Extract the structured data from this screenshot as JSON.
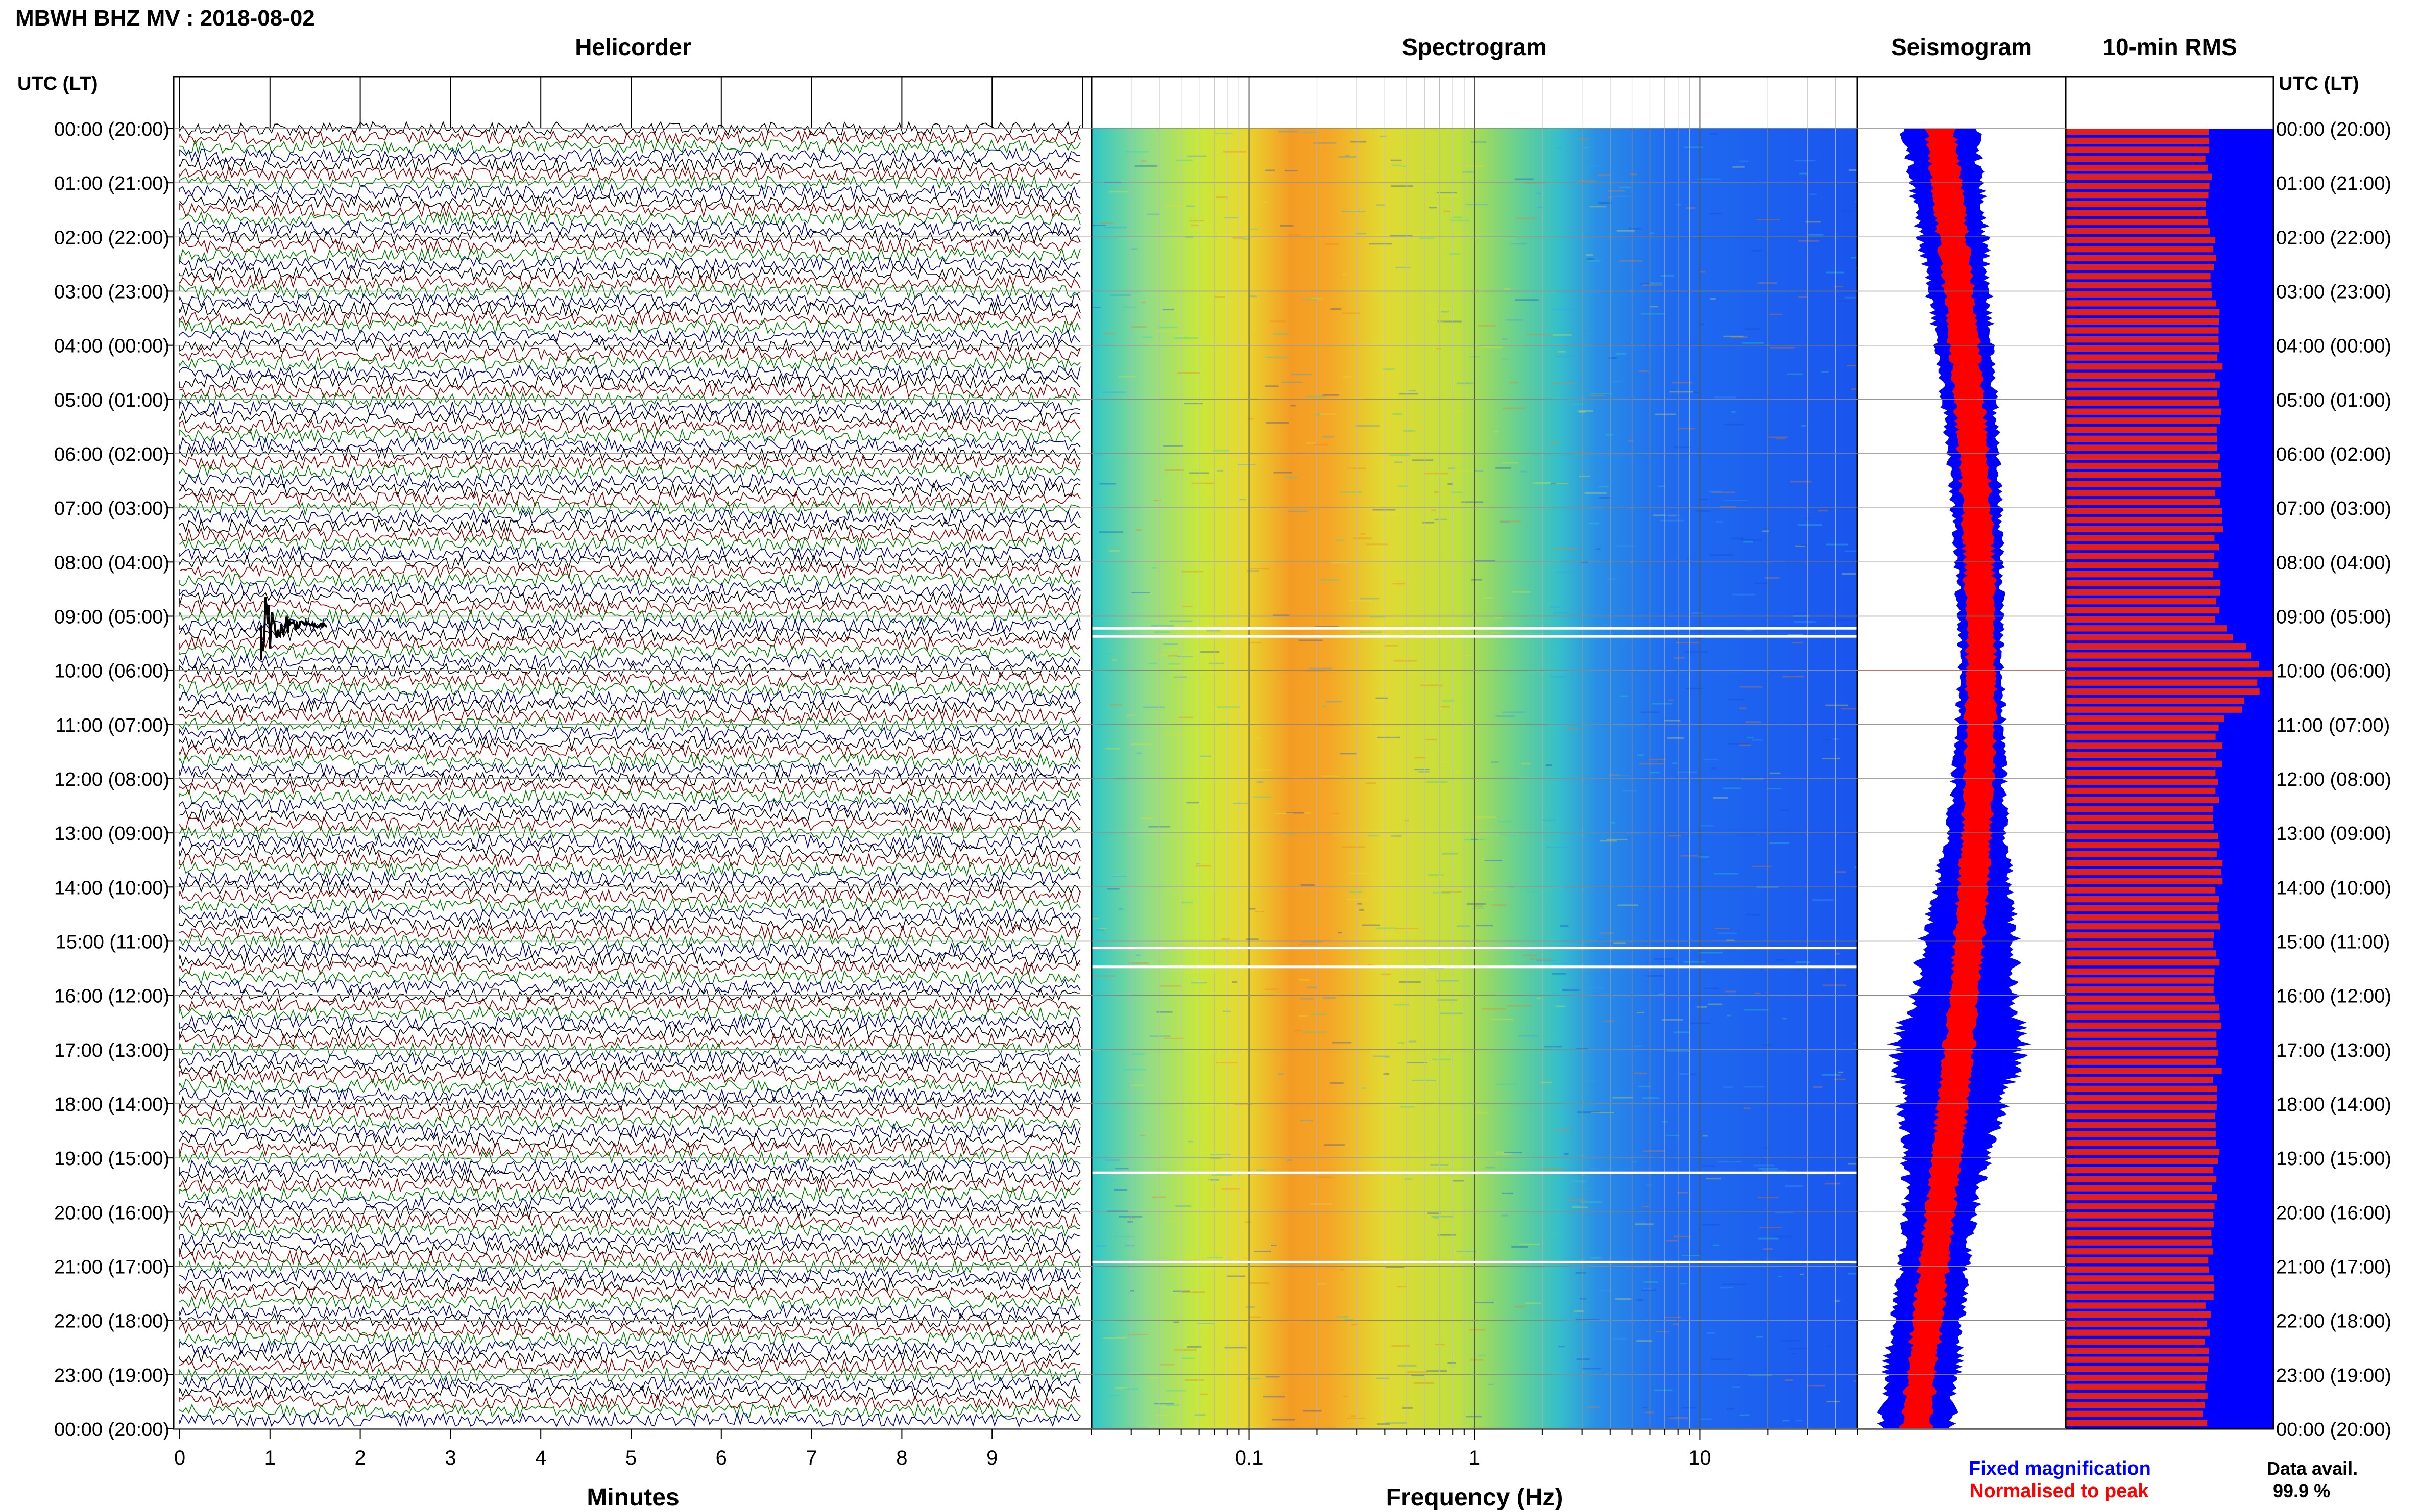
{
  "title": "MBWH BHZ MV : 2018-08-02",
  "panels": {
    "helicorder": "Helicorder",
    "spectrogram": "Spectrogram",
    "seismogram": "Seismogram",
    "rms": "10-min RMS"
  },
  "axis_headers": {
    "left": "UTC (LT)",
    "right": "UTC (LT)"
  },
  "time_labels": [
    "00:00 (20:00)",
    "01:00 (21:00)",
    "02:00 (22:00)",
    "03:00 (23:00)",
    "04:00 (00:00)",
    "05:00 (01:00)",
    "06:00 (02:00)",
    "07:00 (03:00)",
    "08:00 (04:00)",
    "09:00 (05:00)",
    "10:00 (06:00)",
    "11:00 (07:00)",
    "12:00 (08:00)",
    "13:00 (09:00)",
    "14:00 (10:00)",
    "15:00 (11:00)",
    "16:00 (12:00)",
    "17:00 (13:00)",
    "18:00 (14:00)",
    "19:00 (15:00)",
    "20:00 (16:00)",
    "21:00 (17:00)",
    "22:00 (18:00)",
    "23:00 (19:00)",
    "00:00 (20:00)"
  ],
  "x_axes": {
    "minutes_label": "Minutes",
    "minutes_ticks": [
      "0",
      "1",
      "2",
      "3",
      "4",
      "5",
      "6",
      "7",
      "8",
      "9"
    ],
    "frequency_label": "Frequency (Hz)",
    "frequency_ticks": [
      "0.1",
      "1",
      "10"
    ]
  },
  "legend": {
    "fixed": "Fixed magnification",
    "normalised": "Normalised to peak",
    "fixed_color": "#0000ff",
    "normalised_color": "#ff0000"
  },
  "data_availability": {
    "label": "Data avail.",
    "value": "99.9 %"
  },
  "colors": {
    "trace_cycle": [
      "#000000",
      "#8b0000",
      "#008000",
      "#00008b"
    ],
    "rms_fill": "#0000ff",
    "rms_bar": "#dd2020"
  },
  "chart_data": {
    "type": "heatmap",
    "helicorder": {
      "x_range_minutes": [
        0,
        10
      ],
      "lines": 144,
      "event_utc": "09:10",
      "event_minute": 0.9
    },
    "spectrogram": {
      "x_scale": "log",
      "x_range_hz": [
        0.02,
        50
      ],
      "peak_band_hz": [
        0.2,
        0.5
      ]
    },
    "seismogram_envelope_hourly": {
      "utc_hours": [
        0,
        1,
        2,
        3,
        4,
        5,
        6,
        7,
        8,
        9,
        10,
        11,
        12,
        13,
        14,
        15,
        16,
        17,
        18,
        19,
        20,
        21,
        22,
        23,
        24
      ],
      "fixed_magnification": [
        0.4,
        0.38,
        0.36,
        0.33,
        0.3,
        0.28,
        0.27,
        0.26,
        0.25,
        0.24,
        0.23,
        0.25,
        0.28,
        0.32,
        0.4,
        0.5,
        0.55,
        0.7,
        0.55,
        0.45,
        0.38,
        0.35,
        0.37,
        0.4,
        0.38
      ]
    },
    "rms_10min_hourly": {
      "utc_hours": [
        0,
        1,
        2,
        3,
        4,
        5,
        6,
        7,
        8,
        9,
        10,
        11,
        12,
        13,
        14,
        15,
        16,
        17,
        18,
        19,
        20,
        21,
        22,
        23,
        24
      ],
      "relative": [
        0.7,
        0.68,
        0.7,
        0.72,
        0.73,
        0.74,
        0.74,
        0.74,
        0.73,
        0.73,
        0.99,
        0.74,
        0.73,
        0.73,
        0.74,
        0.72,
        0.73,
        0.74,
        0.72,
        0.72,
        0.72,
        0.7,
        0.69,
        0.68,
        0.67
      ]
    }
  }
}
